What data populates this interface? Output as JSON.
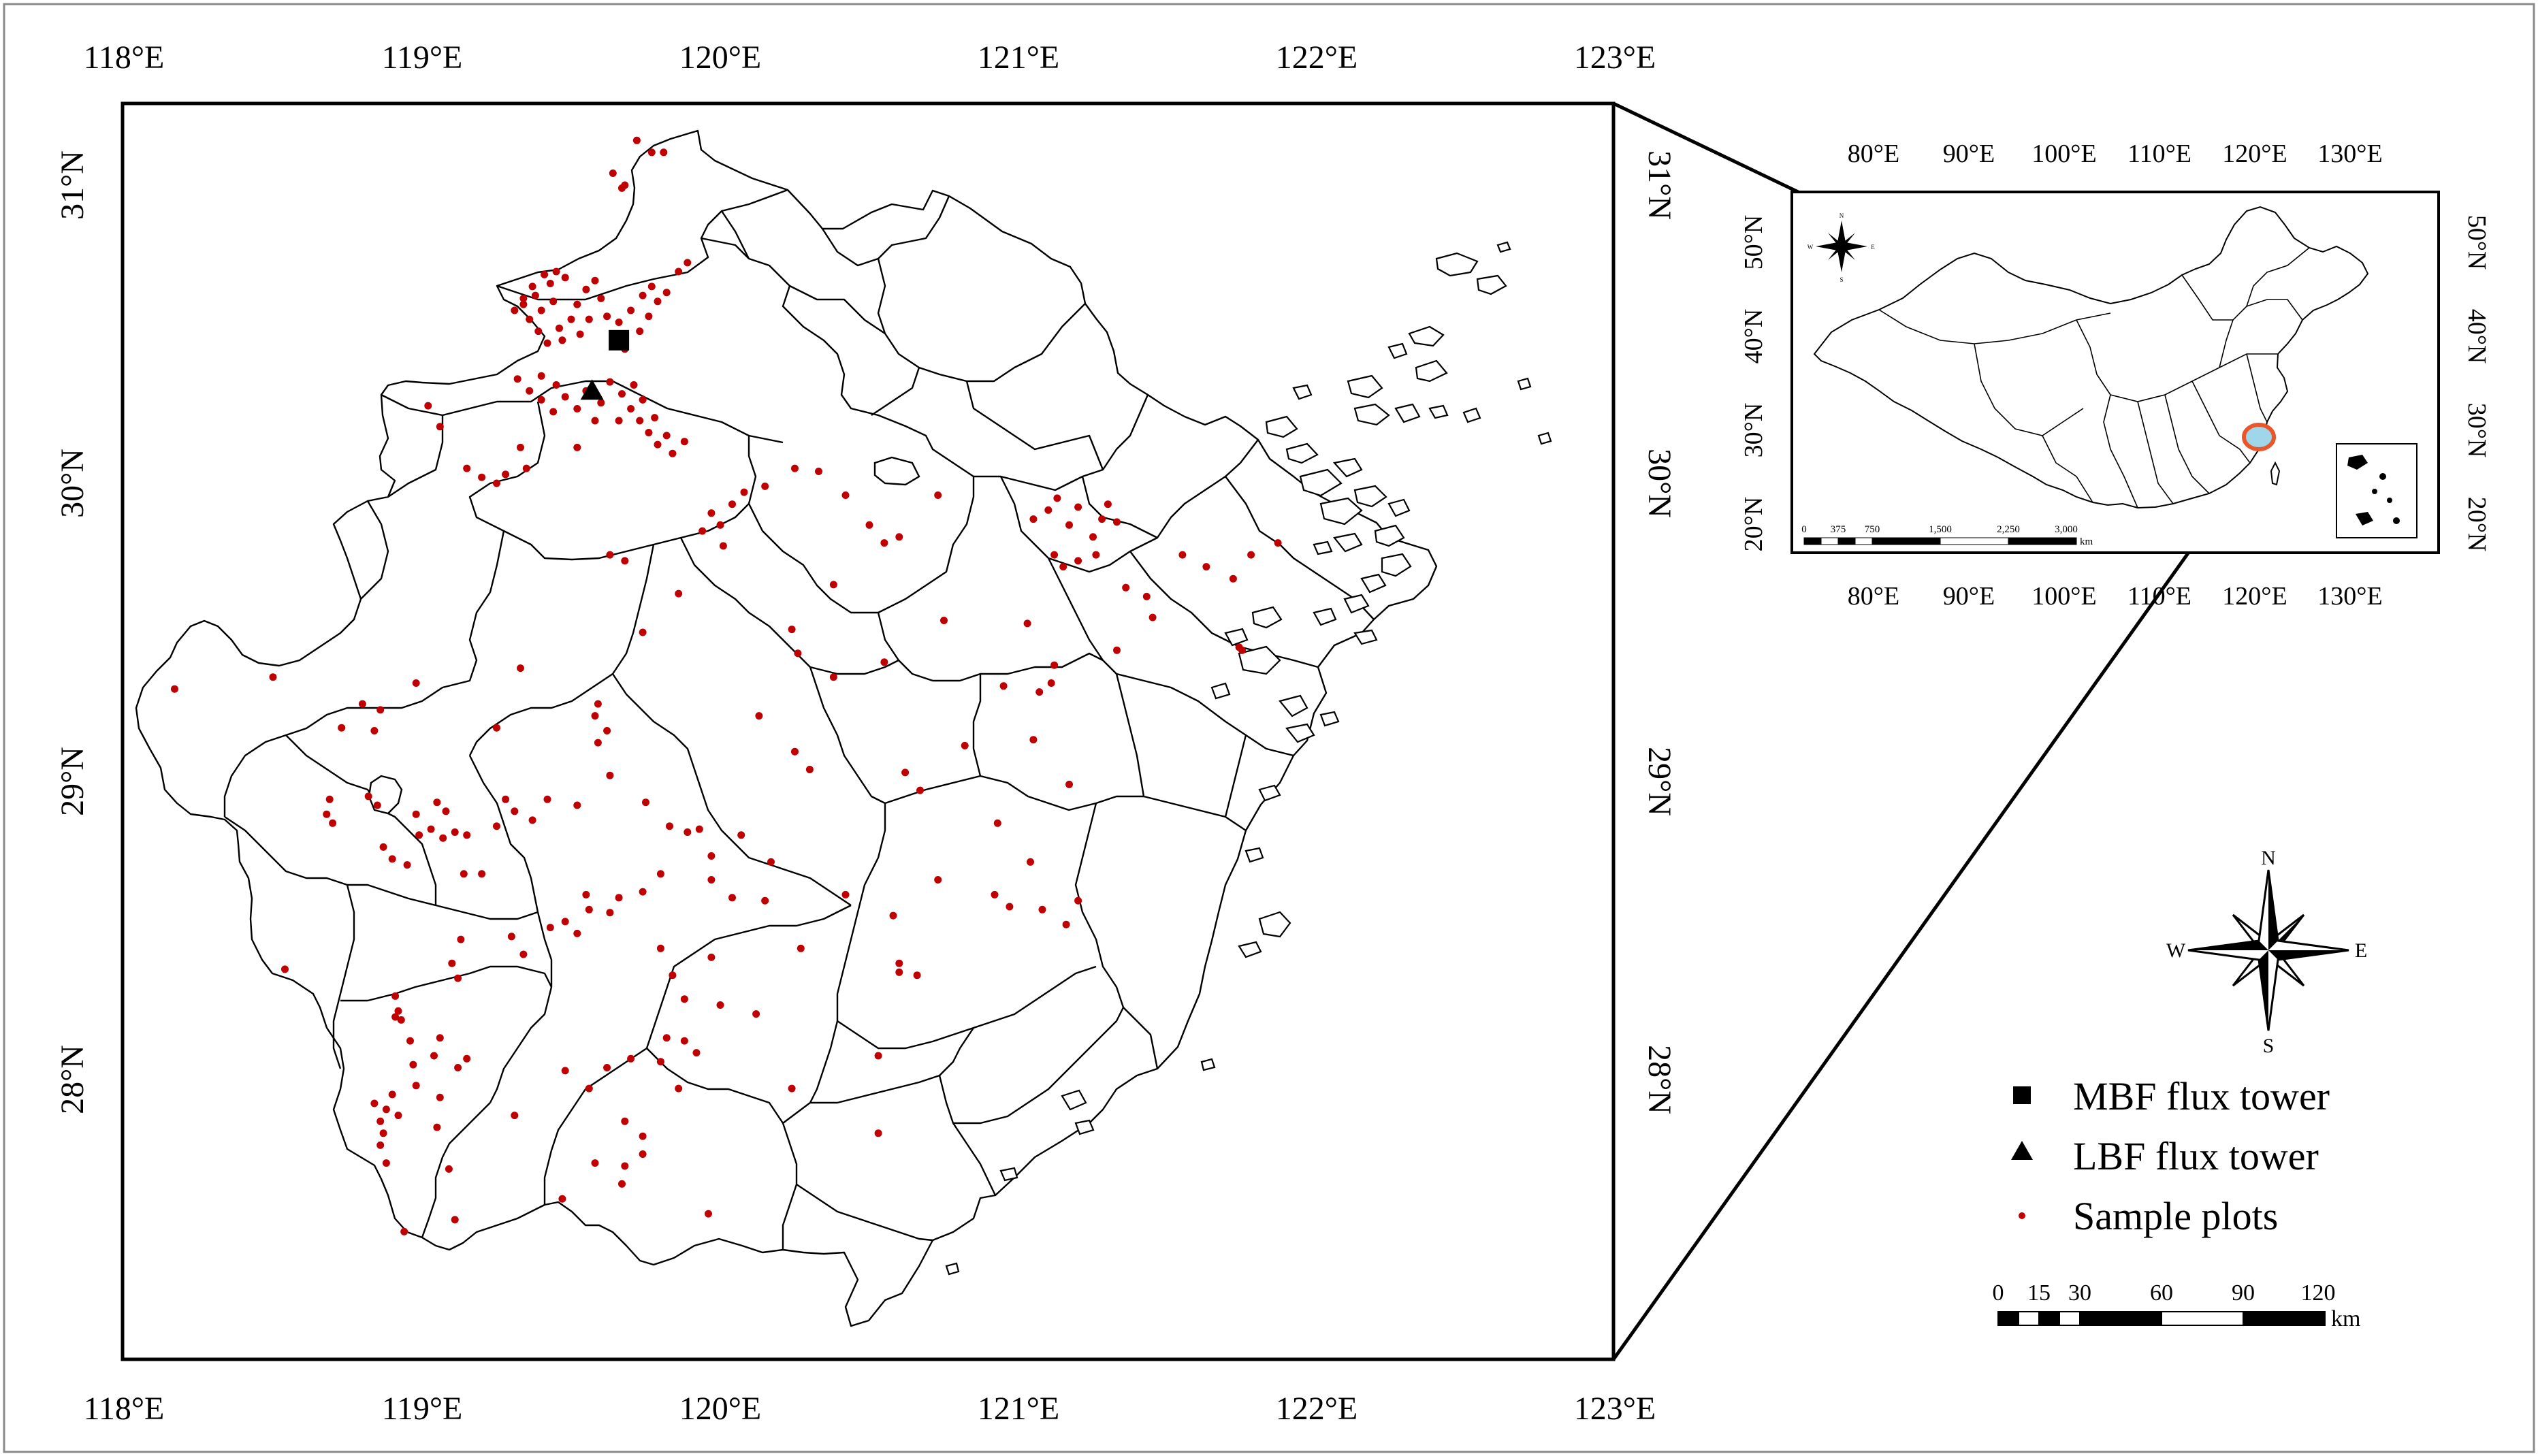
{
  "main_map": {
    "lon_ticks": [
      "118°E",
      "119°E",
      "120°E",
      "121°E",
      "122°E",
      "123°E"
    ],
    "lat_ticks": [
      "31°N",
      "30°N",
      "29°N",
      "28°N"
    ],
    "lon_range": [
      118,
      123
    ],
    "lat_range": [
      26.8,
      31.3
    ],
    "boundary_color": "#000000",
    "plot_color": "#c00000"
  },
  "inset_map": {
    "lon_ticks": [
      "80°E",
      "90°E",
      "100°E",
      "110°E",
      "120°E",
      "130°E"
    ],
    "lat_ticks": [
      "50°N",
      "40°N",
      "30°N",
      "20°N"
    ],
    "lon_range": [
      73,
      136
    ],
    "lat_range": [
      17,
      55
    ],
    "scale_labels": [
      "0",
      "375",
      "750",
      "1,500",
      "2,250",
      "3,000"
    ],
    "scale_unit": "km",
    "compass": {
      "n": "N",
      "s": "S",
      "e": "E",
      "w": "W"
    },
    "highlight_color": "#9fd6ea",
    "highlight_edge": "#e8562a"
  },
  "compass": {
    "n": "N",
    "s": "S",
    "e": "E",
    "w": "W"
  },
  "legend": {
    "items": [
      {
        "symbol": "square",
        "label": "MBF flux tower"
      },
      {
        "symbol": "triangle",
        "label": "LBF flux tower"
      },
      {
        "symbol": "dot",
        "label": "Sample plots"
      }
    ]
  },
  "scale_bar": {
    "labels": [
      "0",
      "15",
      "30",
      "60",
      "90",
      "120"
    ],
    "unit": "km"
  },
  "flux_towers": [
    {
      "name": "MBF flux tower",
      "lon": 119.66,
      "lat": 30.48
    },
    {
      "name": "LBF flux tower",
      "lon": 119.57,
      "lat": 30.31
    }
  ],
  "sample_plots": [
    [
      119.72,
      31.15
    ],
    [
      119.77,
      31.11
    ],
    [
      119.81,
      31.11
    ],
    [
      119.64,
      31.04
    ],
    [
      119.67,
      30.99
    ],
    [
      119.68,
      31.0
    ],
    [
      119.34,
      30.62
    ],
    [
      119.37,
      30.66
    ],
    [
      119.41,
      30.7
    ],
    [
      119.43,
      30.67
    ],
    [
      119.45,
      30.71
    ],
    [
      119.48,
      30.69
    ],
    [
      119.31,
      30.58
    ],
    [
      119.36,
      30.55
    ],
    [
      119.39,
      30.51
    ],
    [
      119.42,
      30.47
    ],
    [
      119.46,
      30.52
    ],
    [
      119.5,
      30.55
    ],
    [
      119.52,
      30.6
    ],
    [
      119.55,
      30.65
    ],
    [
      119.58,
      30.68
    ],
    [
      119.6,
      30.62
    ],
    [
      119.62,
      30.56
    ],
    [
      119.64,
      30.5
    ],
    [
      119.66,
      30.54
    ],
    [
      119.7,
      30.58
    ],
    [
      119.74,
      30.63
    ],
    [
      119.77,
      30.66
    ],
    [
      119.79,
      30.61
    ],
    [
      119.82,
      30.64
    ],
    [
      119.86,
      30.71
    ],
    [
      119.89,
      30.74
    ],
    [
      119.76,
      30.56
    ],
    [
      119.73,
      30.51
    ],
    [
      119.68,
      30.45
    ],
    [
      119.4,
      30.58
    ],
    [
      119.44,
      30.61
    ],
    [
      119.53,
      30.5
    ],
    [
      119.56,
      30.55
    ],
    [
      119.34,
      30.6
    ],
    [
      119.47,
      30.48
    ],
    [
      119.38,
      30.63
    ],
    [
      119.32,
      30.35
    ],
    [
      119.36,
      30.31
    ],
    [
      119.4,
      30.28
    ],
    [
      119.45,
      30.33
    ],
    [
      119.48,
      30.29
    ],
    [
      119.52,
      30.25
    ],
    [
      119.55,
      30.31
    ],
    [
      119.6,
      30.27
    ],
    [
      119.63,
      30.34
    ],
    [
      119.67,
      30.3
    ],
    [
      119.7,
      30.25
    ],
    [
      119.73,
      30.21
    ],
    [
      119.76,
      30.17
    ],
    [
      119.79,
      30.13
    ],
    [
      119.82,
      30.16
    ],
    [
      119.78,
      30.22
    ],
    [
      119.74,
      30.28
    ],
    [
      119.71,
      30.33
    ],
    [
      119.84,
      30.1
    ],
    [
      119.88,
      30.14
    ],
    [
      119.66,
      30.21
    ],
    [
      119.58,
      30.21
    ],
    [
      119.44,
      30.24
    ],
    [
      119.4,
      30.36
    ],
    [
      119.02,
      30.26
    ],
    [
      119.06,
      30.19
    ],
    [
      119.15,
      30.05
    ],
    [
      119.2,
      30.02
    ],
    [
      119.25,
      30.0
    ],
    [
      119.28,
      30.03
    ],
    [
      119.33,
      30.12
    ],
    [
      119.35,
      30.05
    ],
    [
      119.52,
      30.12
    ],
    [
      119.63,
      29.76
    ],
    [
      119.68,
      29.74
    ],
    [
      119.86,
      29.63
    ],
    [
      119.74,
      29.5
    ],
    [
      119.94,
      29.84
    ],
    [
      119.97,
      29.9
    ],
    [
      120.0,
      29.86
    ],
    [
      120.04,
      29.93
    ],
    [
      120.08,
      29.97
    ],
    [
      120.15,
      29.99
    ],
    [
      120.25,
      30.05
    ],
    [
      120.33,
      30.04
    ],
    [
      120.42,
      29.96
    ],
    [
      120.5,
      29.86
    ],
    [
      120.55,
      29.8
    ],
    [
      120.6,
      29.82
    ],
    [
      120.73,
      29.96
    ],
    [
      120.38,
      29.66
    ],
    [
      120.55,
      29.4
    ],
    [
      120.24,
      29.51
    ],
    [
      120.01,
      29.79
    ],
    [
      121.05,
      29.88
    ],
    [
      121.1,
      29.91
    ],
    [
      121.13,
      29.95
    ],
    [
      121.17,
      29.86
    ],
    [
      121.2,
      29.92
    ],
    [
      121.25,
      29.82
    ],
    [
      121.28,
      29.88
    ],
    [
      121.3,
      29.93
    ],
    [
      121.33,
      29.87
    ],
    [
      121.12,
      29.76
    ],
    [
      121.15,
      29.72
    ],
    [
      121.2,
      29.74
    ],
    [
      121.26,
      29.76
    ],
    [
      121.36,
      29.65
    ],
    [
      121.43,
      29.62
    ],
    [
      121.45,
      29.55
    ],
    [
      121.55,
      29.76
    ],
    [
      121.63,
      29.72
    ],
    [
      121.72,
      29.68
    ],
    [
      121.78,
      29.76
    ],
    [
      121.87,
      29.8
    ],
    [
      121.33,
      29.44
    ],
    [
      121.75,
      29.44
    ],
    [
      121.74,
      29.45
    ],
    [
      121.12,
      29.39
    ],
    [
      121.11,
      29.33
    ],
    [
      121.07,
      29.3
    ],
    [
      120.95,
      29.32
    ],
    [
      121.03,
      29.53
    ],
    [
      121.17,
      28.99
    ],
    [
      120.93,
      28.86
    ],
    [
      120.73,
      28.67
    ],
    [
      120.92,
      28.62
    ],
    [
      120.97,
      28.58
    ],
    [
      121.08,
      28.57
    ],
    [
      121.16,
      28.52
    ],
    [
      120.58,
      28.55
    ],
    [
      120.6,
      28.39
    ],
    [
      120.6,
      28.36
    ],
    [
      120.66,
      28.35
    ],
    [
      120.53,
      28.08
    ],
    [
      120.53,
      27.82
    ],
    [
      120.24,
      27.97
    ],
    [
      120.0,
      28.25
    ],
    [
      119.88,
      28.13
    ],
    [
      119.82,
      28.14
    ],
    [
      119.8,
      28.06
    ],
    [
      119.86,
      27.97
    ],
    [
      119.92,
      28.09
    ],
    [
      119.7,
      28.07
    ],
    [
      119.62,
      28.04
    ],
    [
      119.56,
      27.97
    ],
    [
      119.48,
      28.03
    ],
    [
      119.31,
      27.88
    ],
    [
      119.68,
      27.86
    ],
    [
      119.74,
      27.81
    ],
    [
      119.74,
      27.75
    ],
    [
      119.58,
      27.72
    ],
    [
      119.67,
      27.65
    ],
    [
      119.68,
      27.71
    ],
    [
      119.96,
      27.55
    ],
    [
      119.47,
      27.6
    ],
    [
      119.11,
      27.53
    ],
    [
      118.94,
      27.49
    ],
    [
      119.05,
      27.84
    ],
    [
      119.06,
      27.94
    ],
    [
      118.97,
      28.05
    ],
    [
      118.98,
      27.98
    ],
    [
      118.88,
      27.9
    ],
    [
      118.92,
      27.88
    ],
    [
      118.86,
      27.78
    ],
    [
      118.87,
      27.82
    ],
    [
      118.9,
      27.95
    ],
    [
      118.86,
      27.86
    ],
    [
      118.84,
      27.92
    ],
    [
      118.88,
      27.72
    ],
    [
      119.09,
      27.7
    ],
    [
      119.12,
      28.04
    ],
    [
      119.15,
      28.07
    ],
    [
      119.04,
      28.08
    ],
    [
      118.96,
      28.13
    ],
    [
      118.93,
      28.2
    ],
    [
      118.92,
      28.23
    ],
    [
      118.91,
      28.21
    ],
    [
      119.06,
      28.14
    ],
    [
      118.91,
      28.28
    ],
    [
      119.12,
      28.34
    ],
    [
      119.1,
      28.39
    ],
    [
      119.3,
      28.48
    ],
    [
      119.34,
      28.42
    ],
    [
      119.48,
      28.53
    ],
    [
      119.52,
      28.49
    ],
    [
      119.56,
      28.57
    ],
    [
      119.63,
      28.56
    ],
    [
      119.8,
      28.44
    ],
    [
      119.88,
      28.27
    ],
    [
      118.54,
      28.37
    ],
    [
      118.7,
      28.86
    ],
    [
      118.69,
      28.94
    ],
    [
      118.87,
      28.78
    ],
    [
      118.95,
      28.72
    ],
    [
      118.98,
      28.89
    ],
    [
      119.03,
      28.84
    ],
    [
      119.07,
      28.81
    ],
    [
      119.11,
      28.83
    ],
    [
      119.15,
      28.82
    ],
    [
      119.08,
      28.9
    ],
    [
      119.05,
      28.93
    ],
    [
      118.99,
      28.82
    ],
    [
      119.14,
      28.69
    ],
    [
      119.13,
      28.47
    ],
    [
      119.25,
      28.85
    ],
    [
      119.28,
      28.94
    ],
    [
      119.31,
      28.9
    ],
    [
      119.37,
      28.87
    ],
    [
      119.42,
      28.94
    ],
    [
      119.52,
      28.92
    ],
    [
      119.63,
      29.02
    ],
    [
      119.59,
      29.13
    ],
    [
      119.75,
      28.93
    ],
    [
      119.83,
      28.85
    ],
    [
      119.89,
      28.83
    ],
    [
      119.93,
      28.84
    ],
    [
      119.97,
      28.75
    ],
    [
      120.07,
      28.82
    ],
    [
      120.17,
      28.73
    ],
    [
      119.97,
      28.67
    ],
    [
      120.04,
      28.61
    ],
    [
      119.8,
      28.69
    ],
    [
      120.15,
      28.6
    ],
    [
      119.55,
      28.62
    ],
    [
      118.5,
      29.35
    ],
    [
      118.73,
      29.18
    ],
    [
      118.17,
      29.31
    ],
    [
      118.8,
      29.26
    ],
    [
      118.84,
      29.17
    ],
    [
      118.98,
      29.33
    ],
    [
      119.25,
      29.18
    ],
    [
      119.33,
      29.38
    ],
    [
      119.59,
      29.26
    ],
    [
      119.58,
      29.22
    ],
    [
      119.62,
      29.17
    ],
    [
      120.13,
      29.22
    ],
    [
      120.26,
      29.43
    ],
    [
      120.75,
      29.54
    ],
    [
      119.84,
      28.35
    ],
    [
      119.74,
      28.63
    ],
    [
      119.43,
      28.51
    ],
    [
      119.66,
      28.61
    ],
    [
      118.85,
      28.92
    ],
    [
      118.9,
      28.74
    ],
    [
      119.2,
      28.69
    ],
    [
      118.82,
      28.95
    ],
    [
      118.86,
      29.24
    ],
    [
      118.68,
      28.89
    ],
    [
      120.42,
      28.62
    ],
    [
      120.27,
      28.44
    ],
    [
      120.12,
      28.22
    ],
    [
      119.97,
      28.41
    ],
    [
      120.3,
      29.04
    ],
    [
      120.25,
      29.1
    ],
    [
      120.62,
      29.03
    ],
    [
      120.67,
      28.97
    ],
    [
      121.04,
      28.73
    ],
    [
      121.2,
      28.6
    ],
    [
      120.82,
      29.12
    ],
    [
      121.05,
      29.14
    ],
    [
      120.38,
      29.35
    ]
  ]
}
